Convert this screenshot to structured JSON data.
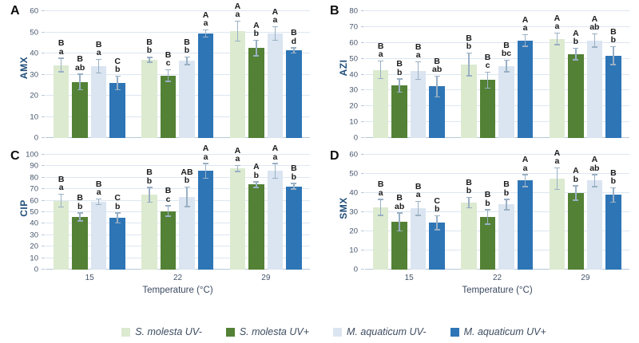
{
  "figure": {
    "xlabel": "Temperature (°C)",
    "colors": {
      "s_molesta_uv_minus": "#dcead0",
      "s_molesta_uv_plus": "#538135",
      "m_aquaticum_uv_minus": "#dae5f1",
      "m_aquaticum_uv_plus": "#2e75b6",
      "gridline": "#dce6f1",
      "error_bar": "#9ab0c4",
      "axis_text": "#44546a",
      "y_title": "#1f4e79"
    },
    "legend": [
      {
        "label": "S. molesta UV-",
        "color": "#dcead0"
      },
      {
        "label": "S. molesta UV+",
        "color": "#538135"
      },
      {
        "label": "M. aquaticum UV-",
        "color": "#dae5f1"
      },
      {
        "label": "M. aquaticum UV+",
        "color": "#2e75b6"
      }
    ]
  },
  "chart_data": [
    {
      "panel": "A",
      "type": "bar",
      "ylabel": "AMX",
      "xlabel": "",
      "ylim": [
        0,
        60
      ],
      "ytick_step": 10,
      "grid": true,
      "show_x_axis": false,
      "categories": [
        "15",
        "22",
        "29"
      ],
      "series": [
        {
          "name": "S. molesta UV-",
          "color": "#dcead0",
          "values": [
            34.5,
            37,
            50.5
          ],
          "errors": [
            3.5,
            1.5,
            5
          ],
          "letters": [
            "B a",
            "B b",
            "A a"
          ]
        },
        {
          "name": "S. molesta UV+",
          "color": "#538135",
          "values": [
            26.5,
            29.5,
            42.5
          ],
          "errors": [
            4,
            3,
            4
          ],
          "letters": [
            "B ab",
            "B c",
            "A b"
          ]
        },
        {
          "name": "M. aquaticum UV-",
          "color": "#dae5f1",
          "values": [
            34,
            36.5,
            49.5
          ],
          "errors": [
            3.5,
            2,
            3.5
          ],
          "letters": [
            "B a",
            "B b",
            "A a"
          ]
        },
        {
          "name": "M. aquaticum UV+",
          "color": "#2e75b6",
          "values": [
            26,
            49.5,
            41.5
          ],
          "errors": [
            3.5,
            2,
            1.5
          ],
          "letters": [
            "C b",
            "A a",
            "B d"
          ]
        }
      ]
    },
    {
      "panel": "B",
      "type": "bar",
      "ylabel": "AZI",
      "xlabel": "",
      "ylim": [
        0,
        80
      ],
      "ytick_step": 10,
      "grid": true,
      "show_x_axis": false,
      "categories": [
        "15",
        "22",
        "29"
      ],
      "series": [
        {
          "name": "S. molesta UV-",
          "color": "#dcead0",
          "values": [
            43,
            46.5,
            62.5
          ],
          "errors": [
            6,
            7.5,
            4
          ],
          "letters": [
            "B a",
            "B b",
            "A a"
          ]
        },
        {
          "name": "S. molesta UV+",
          "color": "#538135",
          "values": [
            33,
            36.5,
            53
          ],
          "errors": [
            4.5,
            5.5,
            4
          ],
          "letters": [
            "B b",
            "B c",
            "A b"
          ]
        },
        {
          "name": "M. aquaticum UV-",
          "color": "#dae5f1",
          "values": [
            42.5,
            45.5,
            61.5
          ],
          "errors": [
            6,
            4,
            4.5
          ],
          "letters": [
            "B a",
            "B bc",
            "A ab"
          ]
        },
        {
          "name": "M. aquaticum UV+",
          "color": "#2e75b6",
          "values": [
            32.5,
            61.5,
            52
          ],
          "errors": [
            7,
            4,
            6
          ],
          "letters": [
            "B ab",
            "A a",
            "B b"
          ]
        }
      ]
    },
    {
      "panel": "C",
      "type": "bar",
      "ylabel": "CIP",
      "xlabel": "Temperature (°C)",
      "ylim": [
        0,
        100
      ],
      "ytick_step": 10,
      "grid": true,
      "show_x_axis": true,
      "categories": [
        "15",
        "22",
        "29"
      ],
      "series": [
        {
          "name": "S. molesta UV-",
          "color": "#dcead0",
          "values": [
            60,
            65,
            88
          ],
          "errors": [
            6,
            7,
            3
          ],
          "letters": [
            "B a",
            "B b",
            "A a"
          ]
        },
        {
          "name": "S. molesta UV+",
          "color": "#538135",
          "values": [
            46,
            51,
            74
          ],
          "errors": [
            4,
            5,
            3
          ],
          "letters": [
            "B b",
            "B c",
            "A b"
          ]
        },
        {
          "name": "M. aquaticum UV-",
          "color": "#dae5f1",
          "values": [
            59,
            63.5,
            86
          ],
          "errors": [
            3,
            9,
            7
          ],
          "letters": [
            "B a",
            "AB b",
            "A a"
          ]
        },
        {
          "name": "M. aquaticum UV+",
          "color": "#2e75b6",
          "values": [
            45,
            86,
            72.5
          ],
          "errors": [
            5,
            7,
            3
          ],
          "letters": [
            "C b",
            "A a",
            "B b"
          ]
        }
      ]
    },
    {
      "panel": "D",
      "type": "bar",
      "ylabel": "SMX",
      "xlabel": "Temperature (°C)",
      "ylim": [
        0,
        60
      ],
      "ytick_step": 10,
      "grid": true,
      "show_x_axis": true,
      "categories": [
        "15",
        "22",
        "29"
      ],
      "series": [
        {
          "name": "S. molesta UV-",
          "color": "#dcead0",
          "values": [
            32.5,
            35,
            47.5
          ],
          "errors": [
            4.5,
            3,
            6
          ],
          "letters": [
            "B a",
            "B b",
            "A a"
          ]
        },
        {
          "name": "S. molesta UV+",
          "color": "#538135",
          "values": [
            25,
            27.5,
            40
          ],
          "errors": [
            5,
            4,
            4
          ],
          "letters": [
            "B ab",
            "B b",
            "A b"
          ]
        },
        {
          "name": "M. aquaticum UV-",
          "color": "#dae5f1",
          "values": [
            32,
            34,
            46.5
          ],
          "errors": [
            4,
            3,
            3.5
          ],
          "letters": [
            "B a",
            "B b",
            "A ab"
          ]
        },
        {
          "name": "M. aquaticum UV+",
          "color": "#2e75b6",
          "values": [
            24.5,
            46.5,
            39
          ],
          "errors": [
            4,
            3.5,
            4
          ],
          "letters": [
            "C b",
            "A a",
            "B b"
          ]
        }
      ]
    }
  ]
}
